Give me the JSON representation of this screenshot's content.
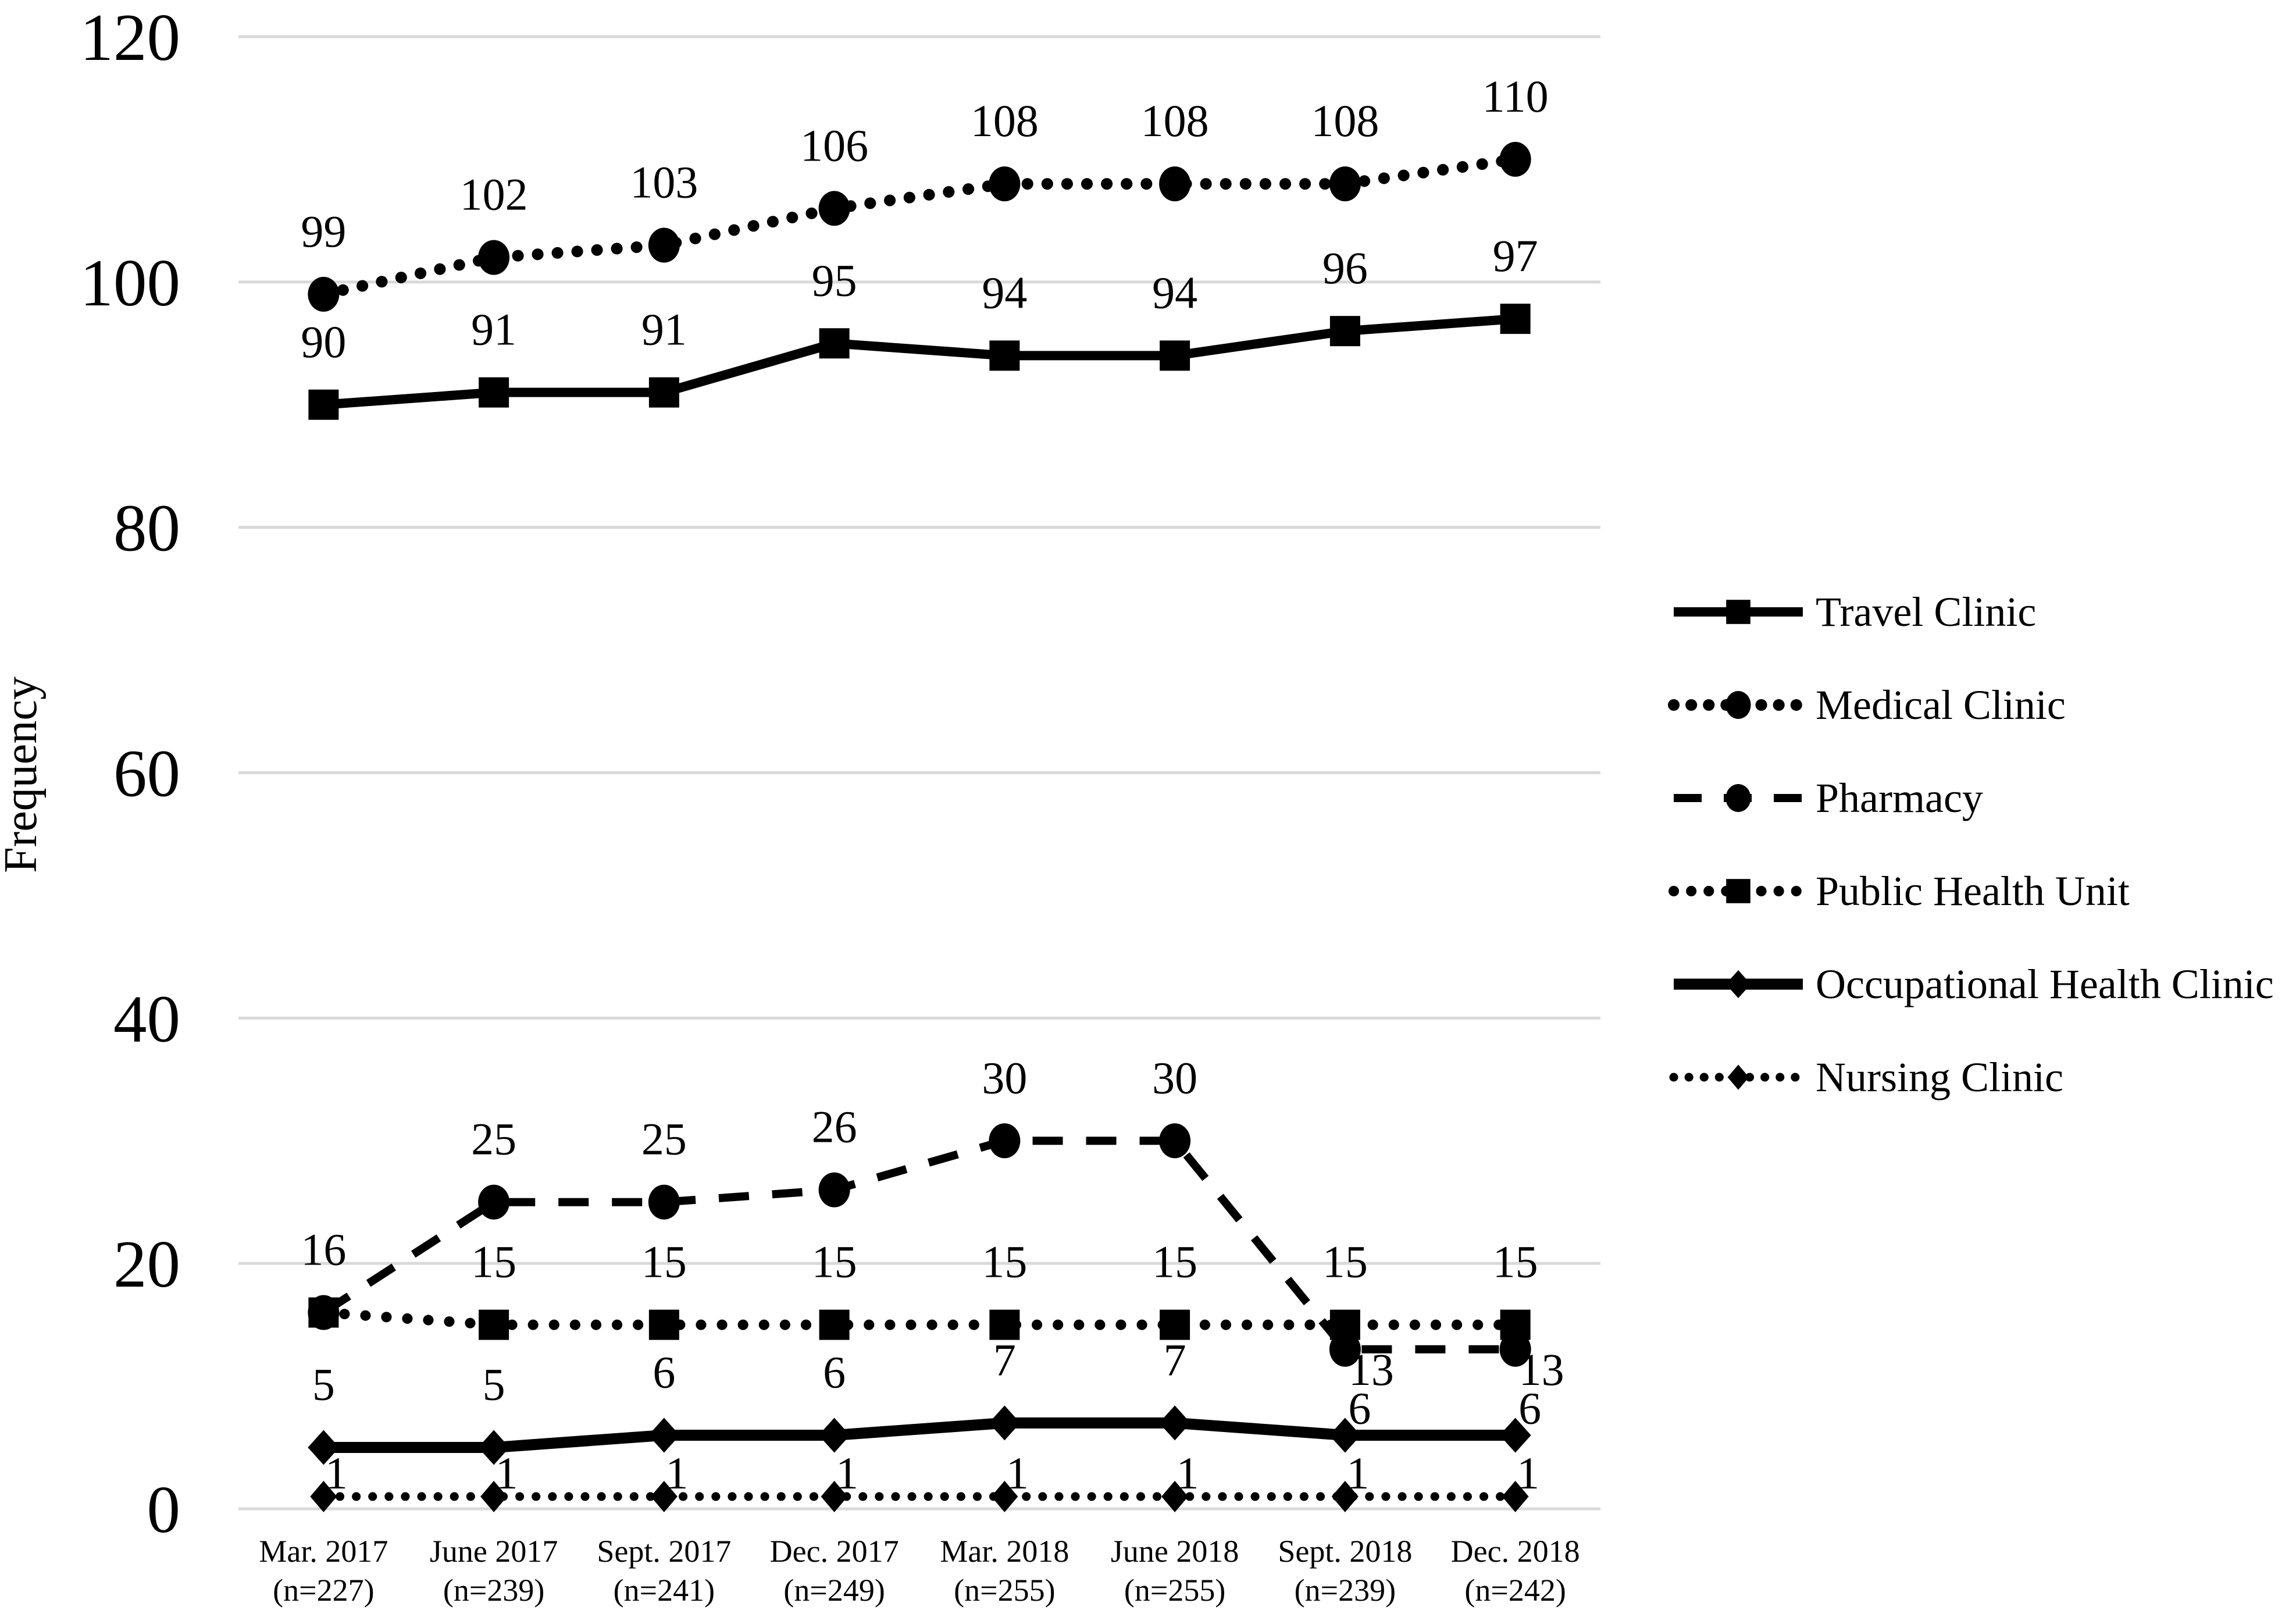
{
  "chart_data": {
    "type": "line",
    "ylabel": "Frequency",
    "ylim": [
      0,
      120
    ],
    "yticks": [
      0,
      20,
      40,
      60,
      80,
      100,
      120
    ],
    "grid": "horizontal",
    "gridline_color": "#d9d9d9",
    "series_color": "#000000",
    "legend_position": "right-middle",
    "categories": [
      "Mar. 2017",
      "June 2017",
      "Sept. 2017",
      "Dec. 2017",
      "Mar. 2018",
      "June 2018",
      "Sept. 2018",
      "Dec. 2018"
    ],
    "category_sublabels": [
      "(n=227)",
      "(n=239)",
      "(n=241)",
      "(n=249)",
      "(n=255)",
      "(n=255)",
      "(n=239)",
      "(n=242)"
    ],
    "series": [
      {
        "name": "Travel Clinic",
        "line": "solid",
        "marker": "square",
        "values": [
          90,
          91,
          91,
          95,
          94,
          94,
          96,
          97
        ],
        "label_position": "above"
      },
      {
        "name": "Medical Clinic",
        "line": "dotted",
        "marker": "circle",
        "values": [
          99,
          102,
          103,
          106,
          108,
          108,
          108,
          110
        ],
        "label_position": "above"
      },
      {
        "name": "Pharmacy",
        "line": "dashed",
        "marker": "circle",
        "values": [
          16,
          25,
          25,
          26,
          30,
          30,
          13,
          13
        ],
        "label_position": "above",
        "label_overrides": {
          "0": "hidden",
          "6": "below-right",
          "7": "below-right"
        }
      },
      {
        "name": "Public Health Unit",
        "line": "dotted",
        "marker": "square",
        "values": [
          16,
          15,
          15,
          15,
          15,
          15,
          15,
          15
        ],
        "label_position": "above"
      },
      {
        "name": "Occupational Health Clinic",
        "line": "solid",
        "weight": "thick",
        "marker": "diamond",
        "values": [
          5,
          5,
          6,
          6,
          7,
          7,
          6,
          6
        ],
        "label_position": "above",
        "label_overrides": {
          "6": "tight-right",
          "7": "tight-right"
        }
      },
      {
        "name": "Nursing Clinic",
        "line": "dotted",
        "marker": "diamond",
        "values": [
          1,
          1,
          1,
          1,
          1,
          1,
          1,
          1
        ],
        "label_position": "above-right"
      }
    ]
  }
}
